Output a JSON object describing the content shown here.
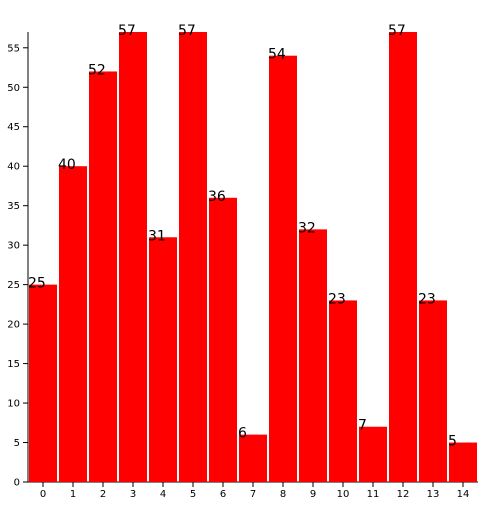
{
  "chart_data": {
    "type": "bar",
    "categories": [
      "0",
      "1",
      "2",
      "3",
      "4",
      "5",
      "6",
      "7",
      "8",
      "9",
      "10",
      "11",
      "12",
      "13",
      "14"
    ],
    "values": [
      25,
      40,
      52,
      57,
      31,
      57,
      36,
      6,
      54,
      32,
      23,
      7,
      57,
      23,
      5
    ],
    "color": "#ff0000",
    "ylim": [
      0,
      57
    ],
    "yticks": [
      0,
      5,
      10,
      15,
      20,
      25,
      30,
      35,
      40,
      45,
      50,
      55
    ],
    "grid": false
  }
}
